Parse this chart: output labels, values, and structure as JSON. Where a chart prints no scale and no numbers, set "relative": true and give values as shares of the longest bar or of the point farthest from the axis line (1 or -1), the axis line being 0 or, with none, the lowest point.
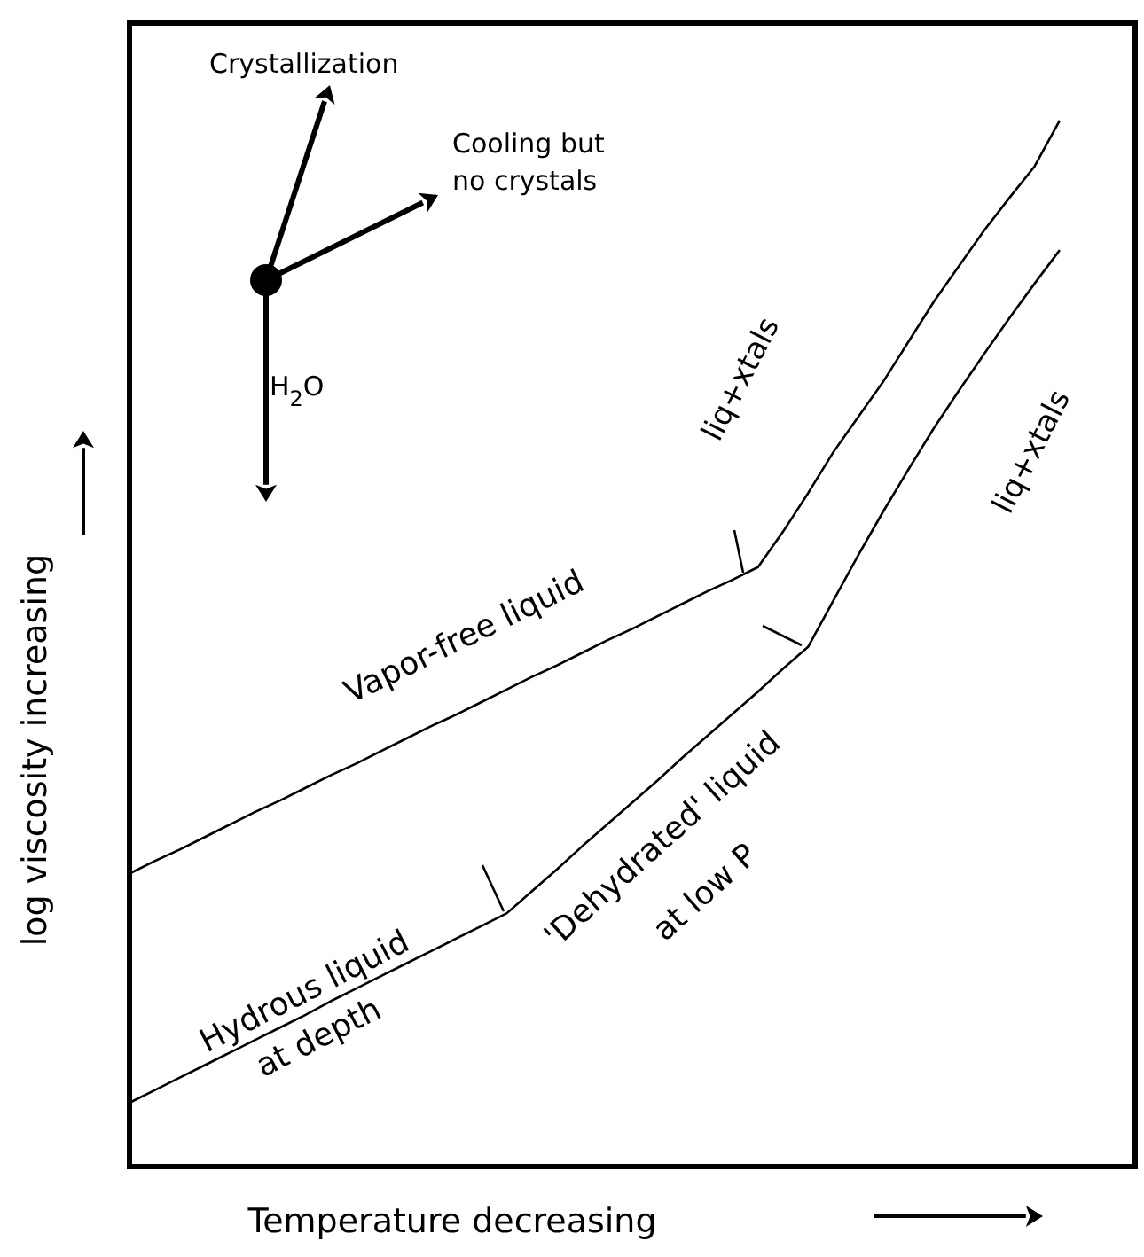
{
  "chart_data": {
    "type": "line",
    "relative": true,
    "xlabel": "Temperature decreasing",
    "ylabel": "log viscosity increasing",
    "categories": [
      null,
      null,
      null,
      null,
      null,
      null,
      null,
      null,
      null,
      null,
      null,
      null,
      null,
      null,
      null,
      null,
      null,
      null,
      null,
      null,
      null,
      null,
      null,
      null,
      null,
      null,
      null,
      null,
      null,
      null,
      null,
      null,
      null,
      null,
      null,
      null,
      null,
      null,
      null,
      null,
      null
    ],
    "series": [
      {
        "color": "#000000",
        "values": [
          0.28,
          0.292,
          0.303,
          0.315,
          0.327,
          0.339,
          0.35,
          0.362,
          0.374,
          0.385,
          0.397,
          0.409,
          0.421,
          0.432,
          0.444,
          0.456,
          0.468,
          0.479,
          0.491,
          0.503,
          0.514,
          0.526,
          0.538,
          0.55,
          0.561,
          0.573,
          0.607,
          0.644,
          0.683,
          0.717,
          0.751,
          0.789,
          0.827,
          0.861,
          0.895,
          0.926,
          0.956,
          1.0,
          null,
          null,
          null
        ]
      },
      {
        "color": "#000000",
        "values": [
          0.061,
          0.073,
          0.085,
          0.097,
          0.109,
          0.121,
          0.133,
          0.145,
          0.158,
          0.17,
          0.182,
          0.194,
          0.206,
          0.218,
          0.23,
          0.242,
          0.263,
          0.284,
          0.306,
          0.327,
          0.348,
          0.369,
          0.391,
          0.412,
          0.433,
          0.454,
          0.476,
          0.497,
          0.541,
          0.585,
          0.627,
          0.667,
          0.706,
          0.742,
          0.777,
          0.811,
          0.844,
          0.876,
          null,
          null,
          null
        ]
      }
    ],
    "annotations": [
      "Crystallization",
      "Cooling but",
      "no crystals",
      "H$_{2}$O",
      "liq+xtals",
      "liq+xtals",
      "Vapor-free liquid",
      "Hydrous liquid",
      "at depth",
      "'Dehydrated' liquid",
      "at low P"
    ]
  }
}
